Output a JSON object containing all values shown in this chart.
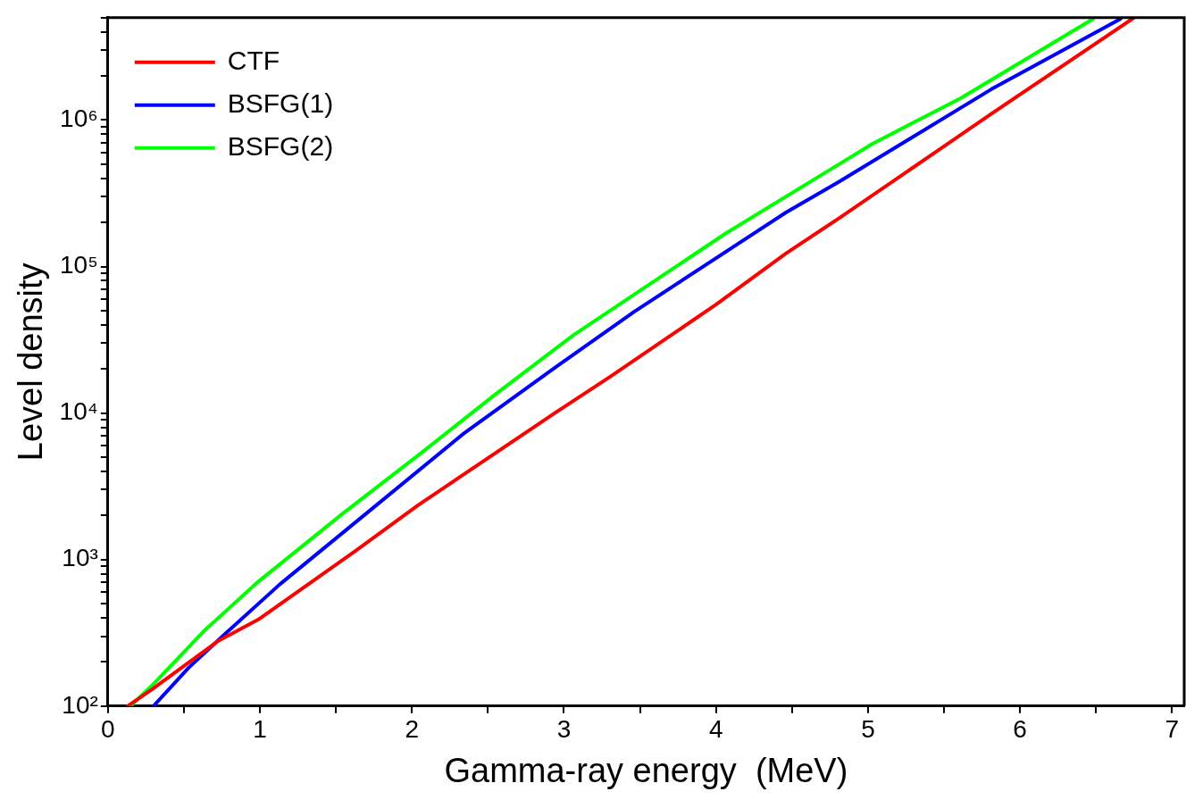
{
  "chart_data": {
    "type": "line",
    "xlabel": "Gamma-ray energy  (MeV)",
    "ylabel": "Level density",
    "log": "y",
    "grid": false,
    "legend": "top left",
    "marker": "none",
    "line_style": "solid",
    "xlim": [
      0,
      7.08
    ],
    "ylim": [
      100,
      5000000
    ],
    "xticks": [
      0,
      {
        "value": 0.5,
        "label": null
      },
      1,
      {
        "value": 1.5,
        "label": null
      },
      2,
      {
        "value": 2.5,
        "label": null
      },
      3,
      {
        "value": 3.5,
        "label": null
      },
      4,
      {
        "value": 4.5,
        "label": null
      },
      5,
      {
        "value": 5.5,
        "label": null
      },
      6,
      {
        "value": 6.5,
        "label": null
      },
      7
    ],
    "yticks": [
      {
        "value": 100,
        "label": "10²"
      },
      {
        "value": 200,
        "label": null
      },
      {
        "value": 300,
        "label": null
      },
      {
        "value": 400,
        "label": null
      },
      {
        "value": 500,
        "label": null
      },
      {
        "value": 600,
        "label": null
      },
      {
        "value": 700,
        "label": null
      },
      {
        "value": 800,
        "label": null
      },
      {
        "value": 900,
        "label": null
      },
      {
        "value": 1000,
        "label": "10³"
      },
      {
        "value": 2000,
        "label": null
      },
      {
        "value": 3000,
        "label": null
      },
      {
        "value": 4000,
        "label": null
      },
      {
        "value": 5000,
        "label": null
      },
      {
        "value": 6000,
        "label": null
      },
      {
        "value": 7000,
        "label": null
      },
      {
        "value": 8000,
        "label": null
      },
      {
        "value": 9000,
        "label": null
      },
      {
        "value": 10000,
        "label": "10⁴"
      },
      {
        "value": 20000,
        "label": null
      },
      {
        "value": 30000,
        "label": null
      },
      {
        "value": 40000,
        "label": null
      },
      {
        "value": 50000,
        "label": null
      },
      {
        "value": 60000,
        "label": null
      },
      {
        "value": 70000,
        "label": null
      },
      {
        "value": 80000,
        "label": null
      },
      {
        "value": 90000,
        "label": null
      },
      {
        "value": 100000,
        "label": "10⁵"
      },
      {
        "value": 200000,
        "label": null
      },
      {
        "value": 300000,
        "label": null
      },
      {
        "value": 400000,
        "label": null
      },
      {
        "value": 500000,
        "label": null
      },
      {
        "value": 600000,
        "label": null
      },
      {
        "value": 700000,
        "label": null
      },
      {
        "value": 800000,
        "label": null
      },
      {
        "value": 900000,
        "label": null
      },
      {
        "value": 1000000,
        "label": "10⁶"
      },
      {
        "value": 2000000,
        "label": null
      },
      {
        "value": 3000000,
        "label": null
      },
      {
        "value": 4000000,
        "label": null
      },
      {
        "value": 5000000,
        "label": null
      }
    ],
    "series": [
      {
        "name": "CTF",
        "color": "#ff0000",
        "x": [
          0.13,
          0.29,
          0.73,
          0.99,
          1.63,
          2.04,
          2.94,
          3.3,
          4.0,
          4.46,
          4.81,
          5.47,
          5.81,
          6.75
        ],
        "values": [
          100,
          130,
          280,
          390,
          1150,
          2350,
          10000,
          17600,
          55000,
          123000,
          214000,
          630000,
          1100000,
          5000000
        ]
      },
      {
        "name": "BSFG(1)",
        "color": "#0000ff",
        "x": [
          0.3,
          0.53,
          0.79,
          1.13,
          1.73,
          2.34,
          2.94,
          3.46,
          4.46,
          4.81,
          5.81,
          6.66
        ],
        "values": [
          100,
          182,
          324,
          676,
          2190,
          7240,
          20400,
          49000,
          234000,
          380000,
          1620000,
          4900000
        ]
      },
      {
        "name": "BSFG(2)",
        "color": "#00ff00",
        "x": [
          0.15,
          0.31,
          0.63,
          0.99,
          1.54,
          2.04,
          2.54,
          3.06,
          4.07,
          4.81,
          5.03,
          5.61,
          6.48
        ],
        "values": [
          100,
          145,
          324,
          708,
          2040,
          5130,
          13200,
          33900,
          170000,
          500000,
          690000,
          1410000,
          4900000
        ]
      }
    ]
  }
}
